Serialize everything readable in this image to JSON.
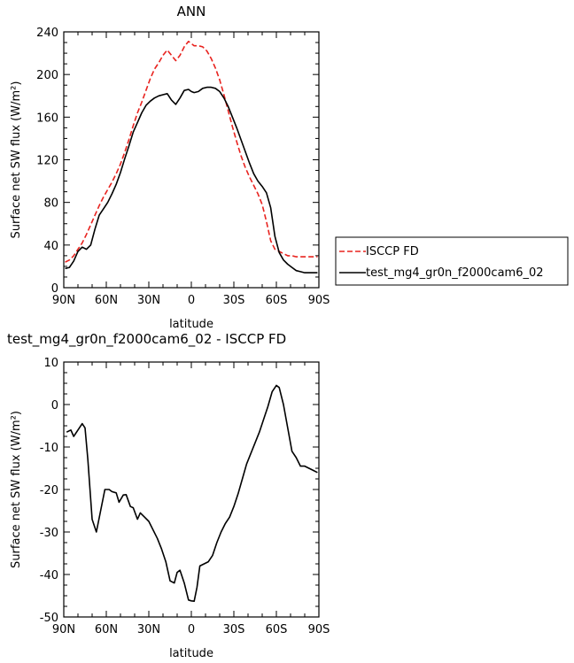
{
  "chart_data": [
    {
      "type": "line",
      "title": "ANN",
      "xlabel": "latitude",
      "ylabel": "Surface net SW flux (W/m²)",
      "xlim": [
        90,
        -90
      ],
      "ylim": [
        0,
        240
      ],
      "xticks": [
        90,
        60,
        30,
        0,
        -30,
        -60,
        -90
      ],
      "xtick_labels": [
        "90N",
        "60N",
        "30N",
        "0",
        "30S",
        "60S",
        "90S"
      ],
      "yticks": [
        0,
        40,
        80,
        120,
        160,
        200,
        240
      ],
      "legend_position": "right",
      "series": [
        {
          "name": "ISCCP FD",
          "color": "#e8231f",
          "dash": "dashed",
          "x": [
            89,
            86,
            83,
            80,
            77,
            74,
            71,
            68,
            65,
            62,
            59,
            56,
            53,
            50,
            47,
            44,
            41,
            38,
            35,
            32,
            29,
            26,
            23,
            20,
            17,
            14,
            11,
            8,
            5,
            2,
            0,
            -2,
            -5,
            -8,
            -11,
            -14,
            -17,
            -20,
            -23,
            -26,
            -29,
            -32,
            -35,
            -38,
            -41,
            -44,
            -47,
            -50,
            -53,
            -56,
            -59,
            -62,
            -65,
            -68,
            -71,
            -74,
            -77,
            -80,
            -83,
            -86,
            -89
          ],
          "y": [
            24,
            26,
            30,
            36,
            42,
            50,
            59,
            68,
            77,
            85,
            92,
            99,
            107,
            116,
            127,
            139,
            152,
            164,
            174,
            185,
            196,
            205,
            211,
            218,
            223,
            218,
            213,
            218,
            226,
            231,
            229,
            227,
            227,
            226,
            222,
            215,
            206,
            195,
            181,
            166,
            151,
            137,
            124,
            113,
            104,
            96,
            88,
            78,
            62,
            44,
            36,
            34,
            32,
            30,
            30,
            29,
            29,
            29,
            29,
            29,
            29
          ]
        },
        {
          "name": "test_mg4_gr0n_f2000cam6_02",
          "color": "#000000",
          "dash": "solid",
          "x": [
            89,
            86,
            83,
            80,
            77,
            74,
            71,
            68,
            65,
            62,
            59,
            56,
            53,
            50,
            47,
            44,
            41,
            38,
            35,
            32,
            29,
            26,
            23,
            20,
            17,
            14,
            11,
            8,
            5,
            2,
            0,
            -2,
            -5,
            -8,
            -11,
            -14,
            -17,
            -20,
            -23,
            -26,
            -29,
            -32,
            -35,
            -38,
            -41,
            -44,
            -47,
            -50,
            -53,
            -56,
            -59,
            -62,
            -65,
            -68,
            -71,
            -74,
            -77,
            -80,
            -83,
            -86,
            -89
          ],
          "y": [
            18,
            19,
            25,
            34,
            38,
            36,
            40,
            55,
            68,
            74,
            80,
            88,
            97,
            108,
            121,
            133,
            146,
            155,
            164,
            171,
            175,
            178,
            180,
            181,
            182,
            176,
            172,
            178,
            185,
            186,
            184,
            183,
            184,
            187,
            188,
            188,
            187,
            184,
            178,
            170,
            160,
            150,
            139,
            128,
            117,
            107,
            100,
            95,
            89,
            75,
            48,
            33,
            26,
            22,
            19,
            16,
            15,
            14,
            14,
            14,
            14
          ]
        }
      ]
    },
    {
      "type": "line",
      "title": "test_mg4_gr0n_f2000cam6_02 - ISCCP FD",
      "xlabel": "latitude",
      "ylabel": "Surface net SW flux (W/m²)",
      "xlim": [
        90,
        -90
      ],
      "ylim": [
        -50,
        10
      ],
      "xticks": [
        90,
        60,
        30,
        0,
        -30,
        -60,
        -90
      ],
      "xtick_labels": [
        "90N",
        "60N",
        "30N",
        "0",
        "30S",
        "60S",
        "90S"
      ],
      "yticks": [
        -50,
        -40,
        -30,
        -20,
        -10,
        0,
        10
      ],
      "series": [
        {
          "color": "#000000",
          "dash": "solid",
          "x": [
            88,
            85,
            83,
            80,
            77,
            75,
            73,
            70,
            67,
            64,
            61,
            58,
            56,
            53,
            51,
            48,
            46,
            43,
            41,
            38,
            36,
            33,
            30,
            27,
            24,
            21,
            18,
            15,
            12,
            10,
            8,
            5,
            2,
            0,
            -2,
            -4,
            -6,
            -9,
            -12,
            -15,
            -18,
            -21,
            -24,
            -27,
            -30,
            -33,
            -36,
            -39,
            -42,
            -45,
            -48,
            -51,
            -54,
            -57,
            -60,
            -62,
            -65,
            -68,
            -71,
            -74,
            -77,
            -80,
            -83,
            -86,
            -89
          ],
          "y": [
            -6.5,
            -6,
            -7.5,
            -6,
            -4.5,
            -5.5,
            -13,
            -27,
            -30,
            -25,
            -20,
            -20,
            -20.5,
            -20.8,
            -23,
            -21.3,
            -21.2,
            -24,
            -24.3,
            -27,
            -25.5,
            -26.5,
            -27.5,
            -29.5,
            -31.5,
            -34,
            -37,
            -41.5,
            -42,
            -39.5,
            -39,
            -42,
            -46,
            -46.2,
            -46.3,
            -43,
            -38,
            -37.5,
            -37,
            -35.5,
            -32.5,
            -30,
            -28,
            -26.5,
            -24,
            -21,
            -17.5,
            -14,
            -11.5,
            -9,
            -6.5,
            -3.5,
            -0.5,
            3,
            4.5,
            4,
            0,
            -5.5,
            -11,
            -12.5,
            -14.5,
            -14.5,
            -15,
            -15.5,
            -16
          ]
        }
      ]
    }
  ]
}
